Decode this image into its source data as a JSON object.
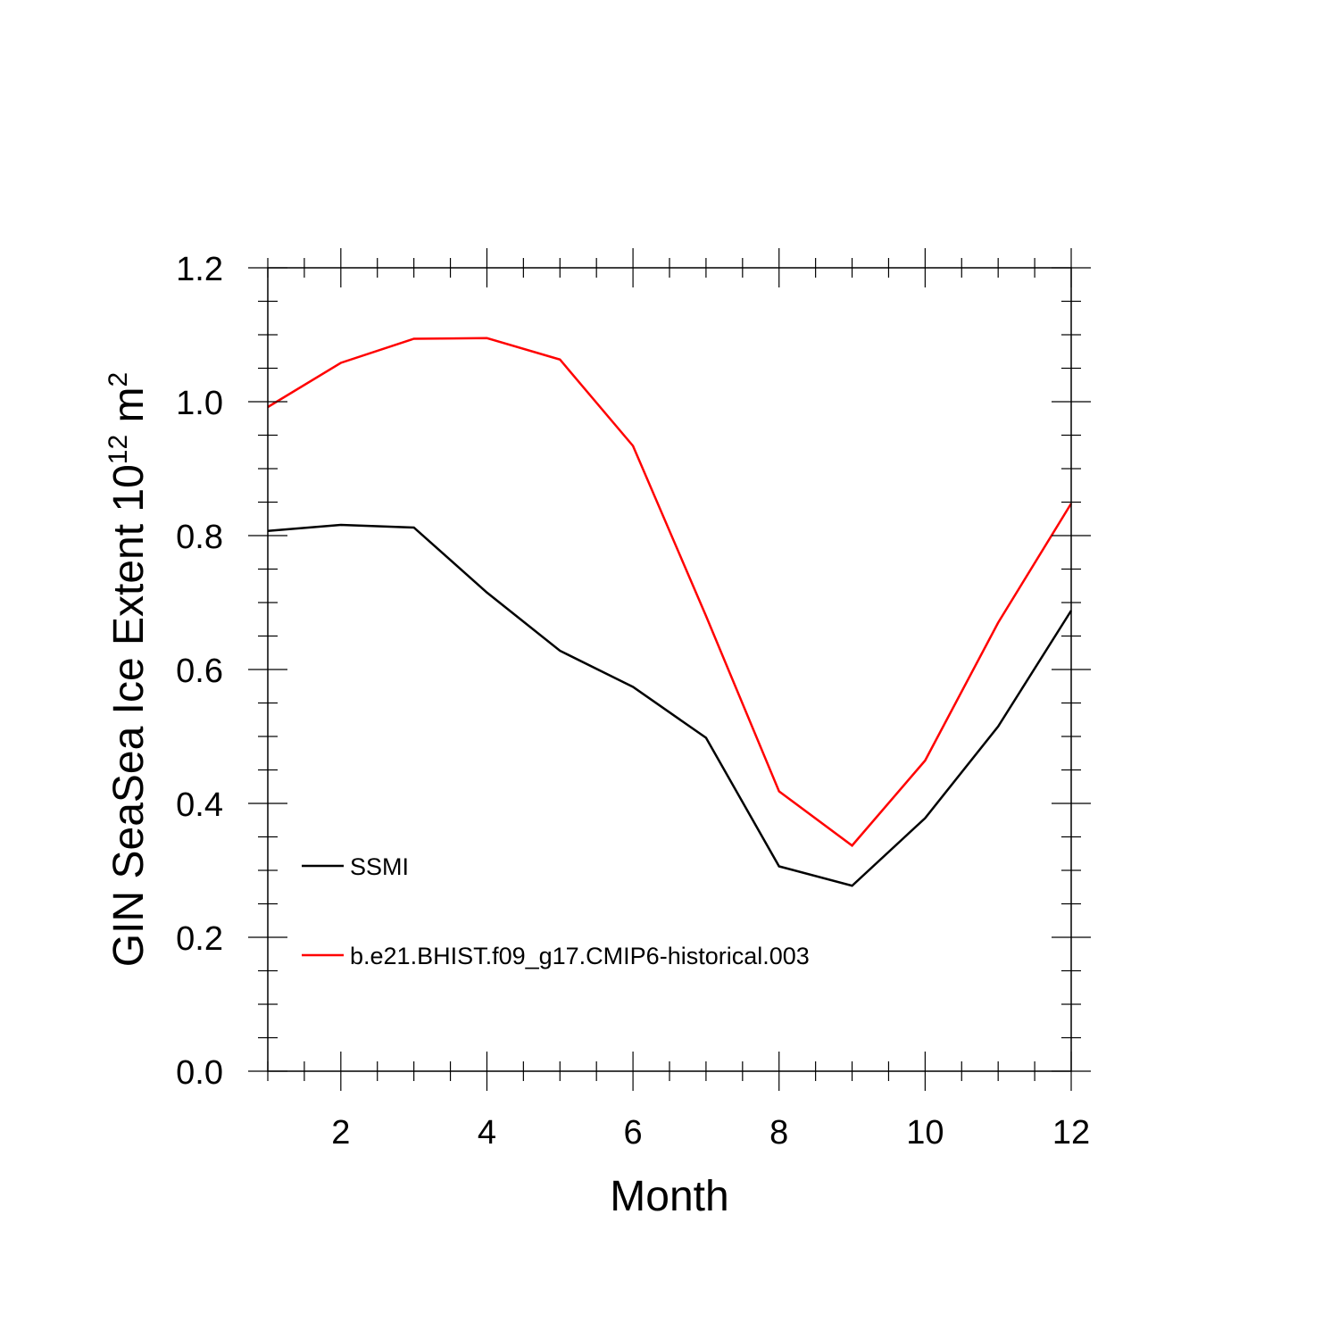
{
  "chart_data": {
    "type": "line",
    "xlabel": "Month",
    "ylabel": {
      "main": "GIN SeaSea Ice Extent 10",
      "exponent": "12",
      "unit": " m",
      "unit_exponent": "2"
    },
    "xlim": [
      1,
      12
    ],
    "ylim": [
      0.0,
      1.2
    ],
    "xticks": [
      2,
      4,
      6,
      8,
      10,
      12
    ],
    "yticks": [
      "0.0",
      "0.2",
      "0.4",
      "0.6",
      "0.8",
      "1.0",
      "1.2"
    ],
    "x": [
      1,
      2,
      3,
      4,
      5,
      6,
      7,
      8,
      9,
      10,
      11,
      12
    ],
    "series": [
      {
        "name": "SSMI",
        "color": "#000000",
        "values": [
          0.807,
          0.816,
          0.812,
          0.715,
          0.628,
          0.574,
          0.498,
          0.306,
          0.277,
          0.378,
          0.515,
          0.688
        ]
      },
      {
        "name": "b.e21.BHIST.f09_g17.CMIP6-historical.003",
        "color": "#ff0000",
        "values": [
          0.992,
          1.058,
          1.094,
          1.095,
          1.063,
          0.934,
          0.68,
          0.418,
          0.337,
          0.464,
          0.67,
          0.848
        ]
      }
    ],
    "legend_position": "lower-left",
    "grid": false
  }
}
